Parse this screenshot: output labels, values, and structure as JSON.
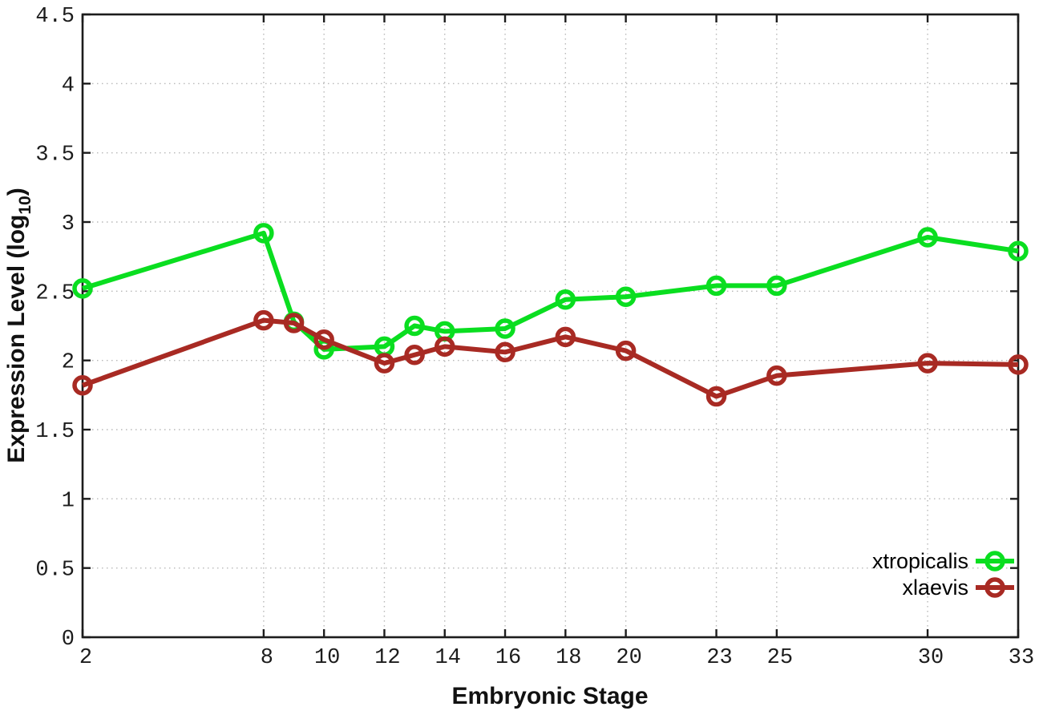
{
  "chart_data": {
    "type": "line",
    "title": "",
    "xlabel": "Embryonic Stage",
    "ylabel": "Expression Level (log10)",
    "ylabel_base": "Expression Level (log",
    "ylabel_sub": "10",
    "ylabel_close": ")",
    "x": [
      2,
      8,
      9,
      10,
      12,
      13,
      14,
      16,
      18,
      20,
      23,
      25,
      30,
      33
    ],
    "xtick_labels": [
      "2",
      "8",
      "10",
      "12",
      "14",
      "16",
      "18",
      "20",
      "23",
      "25",
      "30",
      "33"
    ],
    "xticks": [
      2,
      8,
      10,
      12,
      14,
      16,
      18,
      20,
      23,
      25,
      30,
      33
    ],
    "yticks": [
      0,
      0.5,
      1,
      1.5,
      2,
      2.5,
      3,
      3.5,
      4,
      4.5
    ],
    "ytick_labels": [
      "0",
      "0.5",
      "1",
      "1.5",
      "2",
      "2.5",
      "3",
      "3.5",
      "4",
      "4.5"
    ],
    "xlim": [
      2,
      33
    ],
    "ylim": [
      0,
      4.5
    ],
    "grid": true,
    "legend_position": "bottom-right",
    "series": [
      {
        "name": "xtropicalis",
        "color": "#0ade20",
        "values": [
          2.52,
          2.92,
          2.28,
          2.08,
          2.1,
          2.25,
          2.21,
          2.23,
          2.44,
          2.46,
          2.54,
          2.54,
          2.89,
          2.79
        ]
      },
      {
        "name": "xlaevis",
        "color": "#a82a23",
        "values": [
          1.82,
          2.29,
          2.27,
          2.15,
          1.98,
          2.04,
          2.1,
          2.06,
          2.17,
          2.07,
          1.74,
          1.89,
          1.98,
          1.97
        ]
      }
    ],
    "colors": {
      "border": "#1c1c1c",
      "grid": "#b8b8b8",
      "background": "#ffffff"
    }
  }
}
